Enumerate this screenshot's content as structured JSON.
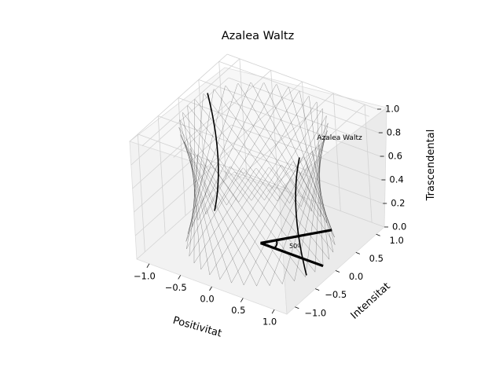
{
  "chart_data": {
    "type": "3d-surface-wireframe",
    "title": "Azalea Waltz",
    "xlabel": "Positivitat",
    "ylabel": "Intensitat",
    "zlabel": "Trascendental",
    "xlim": [
      -1.2,
      1.2
    ],
    "ylim": [
      -1.2,
      1.2
    ],
    "zlim": [
      0,
      1
    ],
    "x_ticks": [
      -1.0,
      -0.5,
      0.0,
      0.5,
      1.0
    ],
    "x_tick_labels": [
      "−1.0",
      "−0.5",
      "0.0",
      "0.5",
      "1.0"
    ],
    "y_ticks": [
      -1.0,
      -0.5,
      0.0,
      0.5,
      1.0
    ],
    "y_tick_labels": [
      "−1.0",
      "−0.5",
      "0.0",
      "0.5",
      "1.0"
    ],
    "z_ticks": [
      0.0,
      0.2,
      0.4,
      0.6,
      0.8,
      1.0
    ],
    "z_tick_labels": [
      "0.0",
      "0.2",
      "0.4",
      "0.6",
      "0.8",
      "1.0"
    ],
    "grid": true,
    "surface": {
      "shape": "hyperboloid of one sheet (twisted-line lattice)",
      "center": [
        0.0,
        0.0
      ],
      "radius_at_bottom": 1.0,
      "radius_at_waist": 0.85,
      "radius_at_top": 1.0,
      "z_range": [
        0.0,
        1.0
      ],
      "color": "#000000",
      "ruling_count": 36
    },
    "annotations": [
      {
        "text": "Azalea Waltz",
        "x": 0.95,
        "y": 0.0,
        "z": 0.8
      },
      {
        "text": "50º",
        "x": 0.0,
        "y": 0.0,
        "z": 0.0
      }
    ],
    "angle_marker": {
      "vertex": [
        0.0,
        0.0,
        0.0
      ],
      "ray1_end": [
        1.0,
        0.0,
        0.0
      ],
      "ray2_end": [
        0.6428,
        0.766,
        0.0
      ],
      "degrees": 50,
      "color": "#000000"
    }
  }
}
